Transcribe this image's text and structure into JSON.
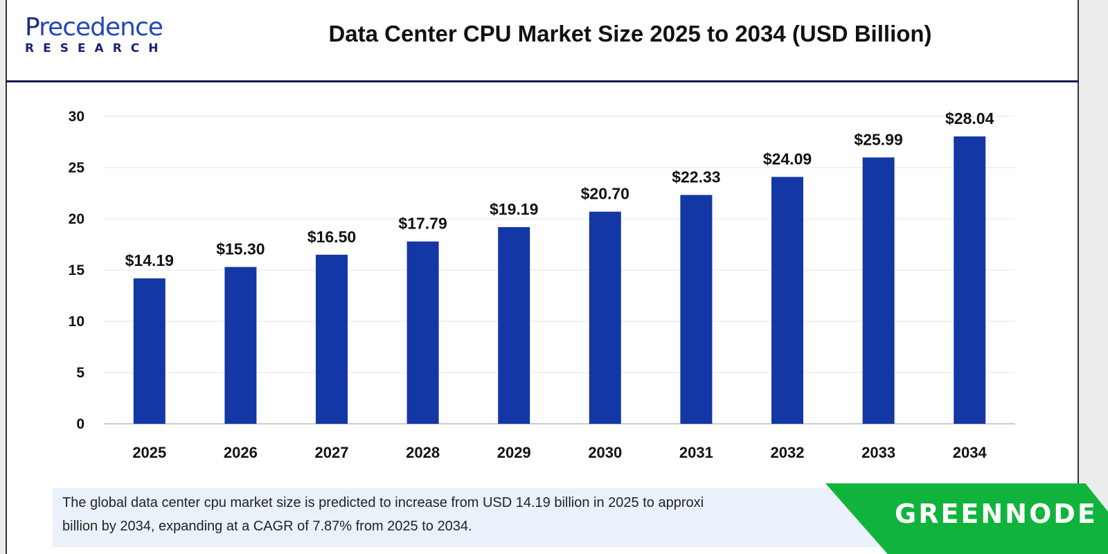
{
  "logo": {
    "line1_first": "P",
    "line1_rest": "recedence",
    "line2": "RESEARCH"
  },
  "chart_data": {
    "type": "bar",
    "title": "Data Center CPU Market Size 2025 to 2034 (USD Billion)",
    "categories": [
      "2025",
      "2026",
      "2027",
      "2028",
      "2029",
      "2030",
      "2031",
      "2032",
      "2033",
      "2034"
    ],
    "values": [
      14.19,
      15.3,
      16.5,
      17.79,
      19.19,
      20.7,
      22.33,
      24.09,
      25.99,
      28.04
    ],
    "data_labels": [
      "$14.19",
      "$15.30",
      "$16.50",
      "$17.79",
      "$19.19",
      "$20.70",
      "$22.33",
      "$24.09",
      "$25.99",
      "$28.04"
    ],
    "ylim": [
      0,
      30
    ],
    "yticks": [
      0,
      5,
      10,
      15,
      20,
      25,
      30
    ],
    "grid": true,
    "bar_color": "#1437a6"
  },
  "note": {
    "line1": "The global data center cpu market size is predicted to increase from USD 14.19 billion in 2025 to approxi",
    "line2": "billion by 2034, expanding at a CAGR of 7.87% from 2025 to 2034."
  },
  "watermark": {
    "text": "GREENNODE",
    "color": "#10b43c"
  }
}
